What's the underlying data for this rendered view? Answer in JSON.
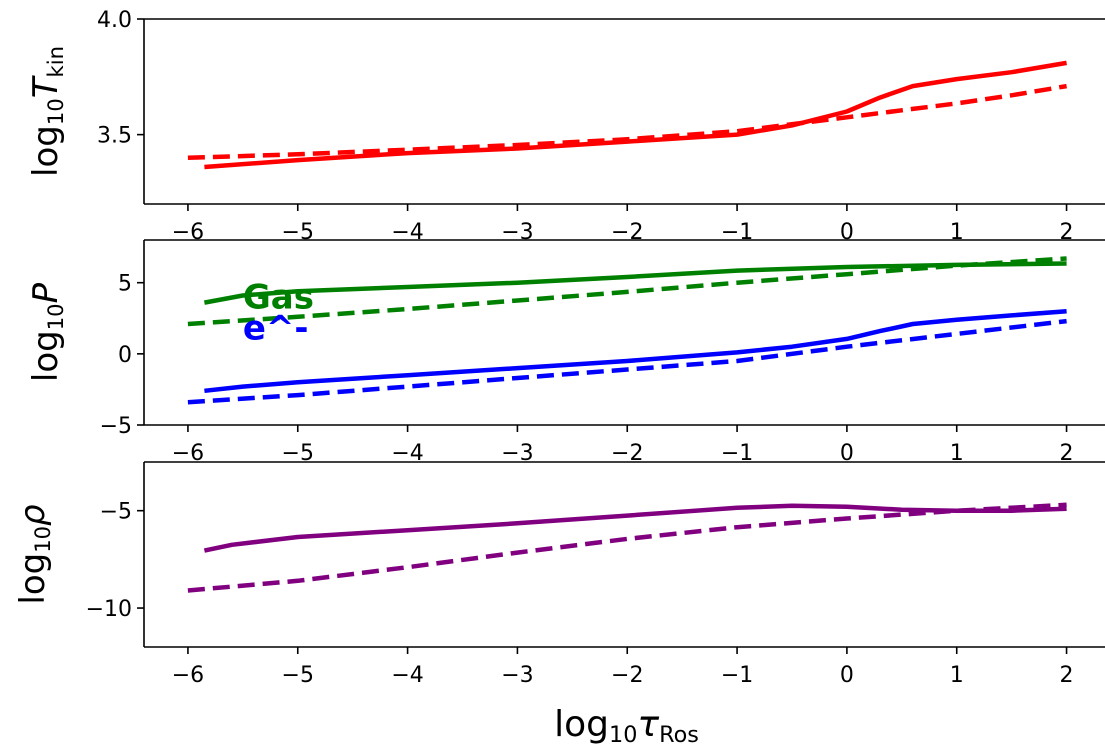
{
  "chart_data": [
    {
      "type": "line",
      "panel": "temperature",
      "ylabel_main": "log",
      "ylabel_sub": "10",
      "ylabel_var": "T",
      "ylabel_var_sub": "kin",
      "xlim": [
        -6.4,
        2.35
      ],
      "ylim": [
        3.2,
        4.0
      ],
      "yticks": [
        3.5,
        4.0
      ],
      "ytick_labels": [
        "3.5",
        "4.0"
      ],
      "xticks": [
        -6,
        -5,
        -4,
        -3,
        -2,
        -1,
        0,
        1,
        2
      ],
      "xtick_labels": [
        "−6",
        "−5",
        "−4",
        "−3",
        "−2",
        "−1",
        "0",
        "1",
        "2"
      ],
      "series": [
        {
          "style": "solid",
          "color": "#ff0000",
          "points": [
            [
              -5.85,
              3.36
            ],
            [
              -5,
              3.39
            ],
            [
              -4,
              3.42
            ],
            [
              -3,
              3.44
            ],
            [
              -2,
              3.47
            ],
            [
              -1,
              3.5
            ],
            [
              -0.5,
              3.54
            ],
            [
              0,
              3.6
            ],
            [
              0.3,
              3.66
            ],
            [
              0.6,
              3.71
            ],
            [
              1,
              3.74
            ],
            [
              1.5,
              3.77
            ],
            [
              2,
              3.81
            ]
          ]
        },
        {
          "style": "dashed",
          "color": "#ff0000",
          "points": [
            [
              -6,
              3.4
            ],
            [
              -5,
              3.415
            ],
            [
              -4,
              3.435
            ],
            [
              -3,
              3.455
            ],
            [
              -2,
              3.48
            ],
            [
              -1,
              3.515
            ],
            [
              0,
              3.575
            ],
            [
              0.5,
              3.605
            ],
            [
              1,
              3.635
            ],
            [
              1.5,
              3.67
            ],
            [
              2,
              3.71
            ]
          ]
        }
      ]
    },
    {
      "type": "line",
      "panel": "pressure",
      "ylabel_main": "log",
      "ylabel_sub": "10",
      "ylabel_var": "P",
      "xlim": [
        -6.4,
        2.35
      ],
      "ylim": [
        -5,
        8
      ],
      "yticks": [
        -5,
        0,
        5
      ],
      "ytick_labels": [
        "−5",
        "0",
        "5"
      ],
      "xticks": [
        -6,
        -5,
        -4,
        -3,
        -2,
        -1,
        0,
        1,
        2
      ],
      "xtick_labels": [
        "−6",
        "−5",
        "−4",
        "−3",
        "−2",
        "−1",
        "0",
        "1",
        "2"
      ],
      "annotations": [
        {
          "text": "Gas",
          "color": "#008000",
          "x": -5.5,
          "y": 3.2
        },
        {
          "text": "e^-",
          "color": "#0000ff",
          "x": -5.5,
          "y": 1.0
        }
      ],
      "series": [
        {
          "style": "solid",
          "color": "#008000",
          "points": [
            [
              -5.85,
              3.6
            ],
            [
              -5.5,
              4.1
            ],
            [
              -5,
              4.4
            ],
            [
              -4,
              4.7
            ],
            [
              -3,
              5.0
            ],
            [
              -2,
              5.4
            ],
            [
              -1,
              5.85
            ],
            [
              0,
              6.1
            ],
            [
              1,
              6.25
            ],
            [
              2,
              6.35
            ]
          ]
        },
        {
          "style": "dashed",
          "color": "#008000",
          "points": [
            [
              -6,
              2.1
            ],
            [
              -5,
              2.6
            ],
            [
              -4,
              3.15
            ],
            [
              -3,
              3.75
            ],
            [
              -2,
              4.35
            ],
            [
              -1,
              5.0
            ],
            [
              0,
              5.6
            ],
            [
              1,
              6.2
            ],
            [
              2,
              6.7
            ]
          ]
        },
        {
          "style": "solid",
          "color": "#0000ff",
          "points": [
            [
              -5.85,
              -2.6
            ],
            [
              -5.5,
              -2.3
            ],
            [
              -5,
              -2.0
            ],
            [
              -4,
              -1.5
            ],
            [
              -3,
              -1.0
            ],
            [
              -2,
              -0.5
            ],
            [
              -1,
              0.1
            ],
            [
              -0.5,
              0.5
            ],
            [
              0,
              1.05
            ],
            [
              0.3,
              1.6
            ],
            [
              0.6,
              2.1
            ],
            [
              1,
              2.4
            ],
            [
              1.5,
              2.7
            ],
            [
              2,
              3.0
            ]
          ]
        },
        {
          "style": "dashed",
          "color": "#0000ff",
          "points": [
            [
              -6,
              -3.4
            ],
            [
              -5,
              -2.9
            ],
            [
              -4,
              -2.3
            ],
            [
              -3,
              -1.7
            ],
            [
              -2,
              -1.1
            ],
            [
              -1,
              -0.5
            ],
            [
              0,
              0.5
            ],
            [
              1,
              1.4
            ],
            [
              2,
              2.3
            ]
          ]
        }
      ]
    },
    {
      "type": "line",
      "panel": "density",
      "ylabel_main": "log",
      "ylabel_sub": "10",
      "ylabel_var": "ρ",
      "xlabel_main": "log",
      "xlabel_sub": "10",
      "xlabel_var": "τ",
      "xlabel_var_sub": "Ros",
      "xlim": [
        -6.4,
        2.35
      ],
      "ylim": [
        -12,
        -2.5
      ],
      "yticks": [
        -10,
        -5
      ],
      "ytick_labels": [
        "−10",
        "−5"
      ],
      "xticks": [
        -6,
        -5,
        -4,
        -3,
        -2,
        -1,
        0,
        1,
        2
      ],
      "xtick_labels": [
        "−6",
        "−5",
        "−4",
        "−3",
        "−2",
        "−1",
        "0",
        "1",
        "2"
      ],
      "series": [
        {
          "style": "solid",
          "color": "#800080",
          "points": [
            [
              -5.85,
              -7.05
            ],
            [
              -5.6,
              -6.75
            ],
            [
              -5,
              -6.35
            ],
            [
              -4,
              -6.0
            ],
            [
              -3,
              -5.65
            ],
            [
              -2,
              -5.25
            ],
            [
              -1,
              -4.85
            ],
            [
              -0.5,
              -4.75
            ],
            [
              0,
              -4.8
            ],
            [
              0.5,
              -4.95
            ],
            [
              1,
              -5.0
            ],
            [
              1.5,
              -5.0
            ],
            [
              2,
              -4.9
            ]
          ]
        },
        {
          "style": "dashed",
          "color": "#800080",
          "points": [
            [
              -6,
              -9.1
            ],
            [
              -5,
              -8.6
            ],
            [
              -4,
              -7.9
            ],
            [
              -3,
              -7.15
            ],
            [
              -2,
              -6.45
            ],
            [
              -1,
              -5.85
            ],
            [
              0,
              -5.4
            ],
            [
              1,
              -5.0
            ],
            [
              2,
              -4.7
            ]
          ]
        }
      ]
    }
  ]
}
